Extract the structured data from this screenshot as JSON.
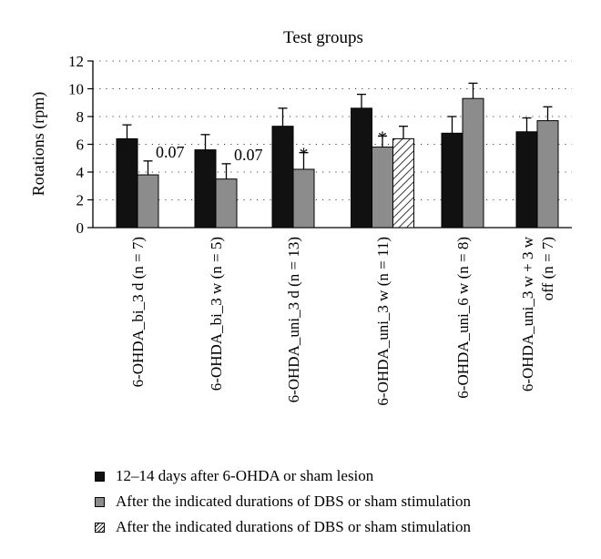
{
  "chart_data": {
    "type": "bar",
    "title": "Test groups",
    "ylabel": "Rotations (rpm)",
    "xlabel": "",
    "ylim": [
      0,
      12
    ],
    "yticks": [
      0,
      2,
      4,
      6,
      8,
      10,
      12
    ],
    "grid": "horizontal dotted",
    "legend_position": "bottom",
    "categories": [
      "6-OHDA_bi_3 d (n = 7)",
      "6-OHDA_bi_3 w (n = 5)",
      "6-OHDA_uni_3 d (n = 13)",
      "6-OHDA_uni_3 w (n = 11)",
      "6-OHDA_uni_6 w (n = 8)",
      "6-OHDA_uni_3 w + 3 w off (n = 7)"
    ],
    "category_lines": [
      [
        "6-OHDA_bi_3 d (n = 7)"
      ],
      [
        "6-OHDA_bi_3 w (n = 5)"
      ],
      [
        "6-OHDA_uni_3 d (n = 13)"
      ],
      [
        "6-OHDA_uni_3 w (n = 11)"
      ],
      [
        "6-OHDA_uni_6 w (n = 8)"
      ],
      [
        "6-OHDA_uni_3 w + 3 w",
        "off (n = 7)"
      ]
    ],
    "series": [
      {
        "name": "12–14 days after 6-OHDA or sham lesion",
        "color": "#111111",
        "pattern": "solid",
        "values": [
          6.4,
          5.6,
          7.3,
          8.6,
          6.8,
          6.9
        ],
        "errors": [
          1.0,
          1.1,
          1.3,
          1.0,
          1.2,
          1.0
        ]
      },
      {
        "name": "After the indicated durations of DBS or sham stimulation",
        "color": "#8c8c8c",
        "pattern": "solid",
        "values": [
          3.8,
          3.5,
          4.2,
          5.8,
          9.3,
          7.7
        ],
        "errors": [
          1.0,
          1.1,
          1.2,
          0.8,
          1.1,
          1.0
        ]
      },
      {
        "name": "After the indicated durations of DBS or sham stimulation",
        "color": "#ffffff",
        "pattern": "hatched",
        "values": [
          null,
          null,
          null,
          6.4,
          null,
          null
        ],
        "errors": [
          null,
          null,
          null,
          0.9,
          null,
          null
        ]
      }
    ],
    "annotations": [
      {
        "category": 0,
        "series": 1,
        "text": "0.07"
      },
      {
        "category": 1,
        "series": 1,
        "text": "0.07"
      },
      {
        "category": 2,
        "series": 1,
        "text": "*"
      },
      {
        "category": 3,
        "series": 1,
        "text": "*"
      }
    ]
  },
  "legend": {
    "items": [
      {
        "label": "12–14 days after 6-OHDA or sham lesion"
      },
      {
        "label": "After the indicated durations of DBS or sham stimulation"
      },
      {
        "label": "After the indicated durations of DBS or sham stimulation"
      }
    ]
  }
}
